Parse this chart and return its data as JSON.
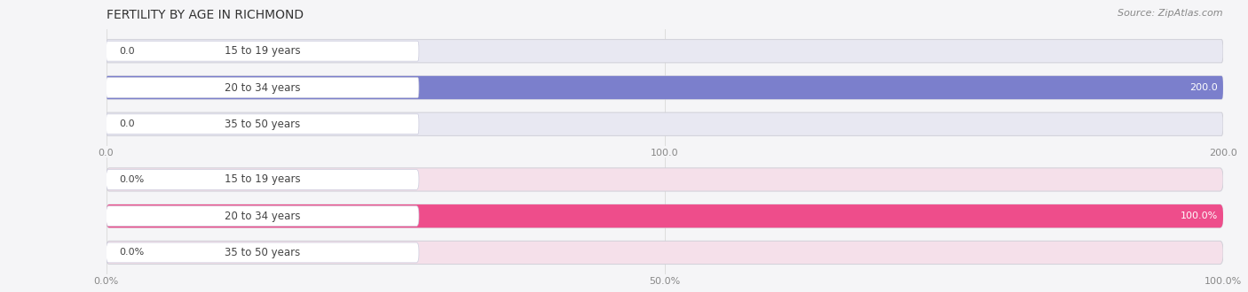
{
  "title": "FERTILITY BY AGE IN RICHMOND",
  "source": "Source: ZipAtlas.com",
  "top_chart": {
    "categories": [
      "15 to 19 years",
      "20 to 34 years",
      "35 to 50 years"
    ],
    "values": [
      0.0,
      200.0,
      0.0
    ],
    "xlim": [
      0,
      200
    ],
    "xticks": [
      0.0,
      100.0,
      200.0
    ],
    "xtick_labels": [
      "0.0",
      "100.0",
      "200.0"
    ],
    "bar_color": "#7b7fcc",
    "bar_bg_color": "#e8e8f2",
    "label_bg_color": "#f5f5f8",
    "bar_height": 0.62
  },
  "bottom_chart": {
    "categories": [
      "15 to 19 years",
      "20 to 34 years",
      "35 to 50 years"
    ],
    "values": [
      0.0,
      100.0,
      0.0
    ],
    "xlim": [
      0,
      100
    ],
    "xticks": [
      0.0,
      50.0,
      100.0
    ],
    "xtick_labels": [
      "0.0%",
      "50.0%",
      "100.0%"
    ],
    "bar_color": "#ee4d8b",
    "bar_bg_color": "#f5e0ea",
    "label_bg_color": "#faf5f7",
    "bar_height": 0.62
  },
  "bg_color": "#f5f5f7",
  "label_color": "#444444",
  "tick_color": "#888888",
  "grid_color": "#dddddd",
  "title_fontsize": 10,
  "label_fontsize": 8.5,
  "value_fontsize": 8,
  "tick_fontsize": 8,
  "source_fontsize": 8
}
